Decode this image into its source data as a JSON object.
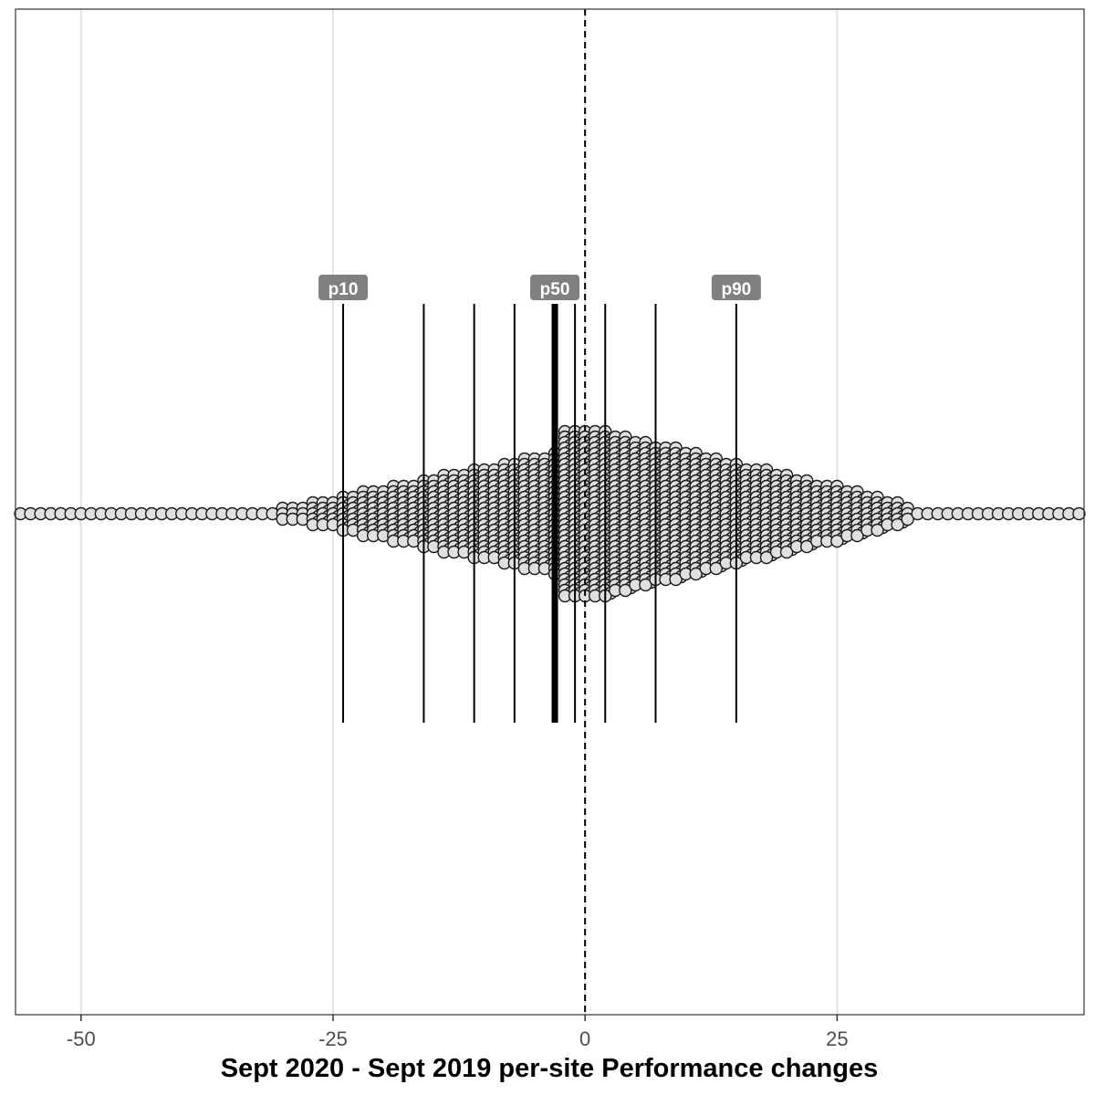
{
  "chart_data": {
    "type": "scatter",
    "subtype": "beeswarm",
    "title": "",
    "xlabel": "Sept 2020 - Sept 2019 per-site Performance changes",
    "ylabel": "",
    "xlim": [
      -56.5,
      49.5
    ],
    "x_ticks": [
      -50,
      -25,
      0,
      25
    ],
    "x_tick_labels": [
      "-50",
      "-25",
      "0",
      "25"
    ],
    "grid": "vertical major gridlines",
    "reference_line": {
      "x": 0,
      "style": "dashed"
    },
    "percentile_lines": [
      {
        "x": -24,
        "label": "p10"
      },
      {
        "x": -16,
        "label": ""
      },
      {
        "x": -11,
        "label": ""
      },
      {
        "x": -7,
        "label": ""
      },
      {
        "x": -3,
        "label": "p50",
        "emphasis": true
      },
      {
        "x": -1,
        "label": ""
      },
      {
        "x": 2,
        "label": ""
      },
      {
        "x": 7,
        "label": ""
      },
      {
        "x": 15,
        "label": "p90"
      }
    ],
    "point_fill": "#e0e0e0",
    "point_stroke": "#1a1a1a",
    "tails": [
      -56,
      -55,
      -54,
      -53,
      -52,
      -51,
      -50,
      -49,
      -48,
      -47,
      -46,
      -45,
      -44,
      -43,
      -42,
      -41,
      33,
      34,
      35,
      36,
      37,
      38,
      39,
      40,
      41,
      42,
      43,
      44,
      45,
      46,
      47,
      48,
      49
    ],
    "distribution": {
      "min": -56,
      "max": 49,
      "mode": -1,
      "median": -3,
      "description": "unimodal, peaked near zero, long symmetric tails"
    }
  }
}
